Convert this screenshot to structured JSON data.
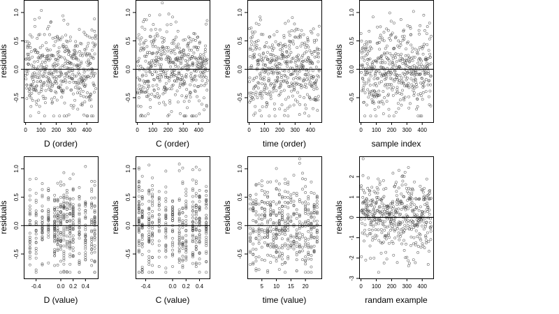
{
  "chart_data": [
    {
      "type": "scatter",
      "xlabel": "D (order)",
      "ylabel": "residuals",
      "xlim": [
        -12,
        472
      ],
      "ylim": [
        -0.93,
        1.22
      ],
      "xticks": [
        0,
        100,
        200,
        300,
        400
      ],
      "xtick_labels": [
        "0",
        "100",
        "200",
        "300",
        "400"
      ],
      "yticks": [
        -0.5,
        0.0,
        0.5,
        1.0
      ],
      "ytick_labels": [
        "-0.5",
        "0.0",
        "0.5",
        "1.0"
      ],
      "refline_y": 0,
      "points": {
        "n": 460,
        "x_mode": "index",
        "sd": 0.38,
        "seed": 11
      }
    },
    {
      "type": "scatter",
      "xlabel": "C (order)",
      "ylabel": "residuals",
      "xlim": [
        -12,
        472
      ],
      "ylim": [
        -0.93,
        1.22
      ],
      "xticks": [
        0,
        100,
        200,
        300,
        400
      ],
      "xtick_labels": [
        "0",
        "100",
        "200",
        "300",
        "400"
      ],
      "yticks": [
        -0.5,
        0.0,
        0.5,
        1.0
      ],
      "ytick_labels": [
        "-0.5",
        "0.0",
        "0.5",
        "1.0"
      ],
      "refline_y": 0,
      "points": {
        "n": 460,
        "x_mode": "index",
        "sd": 0.38,
        "seed": 23
      }
    },
    {
      "type": "scatter",
      "xlabel": "time (order)",
      "ylabel": "residuals",
      "xlim": [
        -12,
        472
      ],
      "ylim": [
        -0.93,
        1.22
      ],
      "xticks": [
        0,
        100,
        200,
        300,
        400
      ],
      "xtick_labels": [
        "0",
        "100",
        "200",
        "300",
        "400"
      ],
      "yticks": [
        -0.5,
        0.0,
        0.5,
        1.0
      ],
      "ytick_labels": [
        "-0.5",
        "0.0",
        "0.5",
        "1.0"
      ],
      "refline_y": 0,
      "points": {
        "n": 460,
        "x_mode": "index",
        "sd": 0.38,
        "seed": 37
      }
    },
    {
      "type": "scatter",
      "xlabel": "sample index",
      "ylabel": "residuals",
      "xlim": [
        -12,
        472
      ],
      "ylim": [
        -0.93,
        1.22
      ],
      "xticks": [
        0,
        100,
        200,
        300,
        400
      ],
      "xtick_labels": [
        "0",
        "100",
        "200",
        "300",
        "400"
      ],
      "yticks": [
        -0.5,
        0.0,
        0.5,
        1.0
      ],
      "ytick_labels": [
        "-0.5",
        "0.0",
        "0.5",
        "1.0"
      ],
      "refline_y": 0,
      "points": {
        "n": 460,
        "x_mode": "index",
        "sd": 0.38,
        "seed": 41
      }
    },
    {
      "type": "scatter",
      "xlabel": "D (value)",
      "ylabel": "residuals",
      "xlim": [
        -0.6,
        0.6
      ],
      "ylim": [
        -0.93,
        1.22
      ],
      "xticks": [
        -0.4,
        0.0,
        0.2,
        0.4
      ],
      "xtick_labels": [
        "-0.4",
        "0.0",
        "0.2",
        "0.4"
      ],
      "yticks": [
        -0.5,
        0.0,
        0.5,
        1.0
      ],
      "ytick_labels": [
        "-0.5",
        "0.0",
        "0.5",
        "1.0"
      ],
      "refline_y": 0,
      "points": {
        "n": 460,
        "x_mode": "levels",
        "x_levels": [
          -0.5,
          -0.4,
          -0.3,
          -0.2,
          -0.1,
          -0.05,
          0.0,
          0.05,
          0.1,
          0.15,
          0.2,
          0.3,
          0.4,
          0.5,
          0.55
        ],
        "sd": 0.38,
        "seed": 53
      }
    },
    {
      "type": "scatter",
      "xlabel": "C (value)",
      "ylabel": "residuals",
      "xlim": [
        -0.55,
        0.55
      ],
      "ylim": [
        -0.93,
        1.22
      ],
      "xticks": [
        -0.4,
        0.0,
        0.2,
        0.4
      ],
      "xtick_labels": [
        "-0.4",
        "0.0",
        "0.2",
        "0.4"
      ],
      "yticks": [
        -0.5,
        0.0,
        0.5,
        1.0
      ],
      "ytick_labels": [
        "-0.5",
        "0.0",
        "0.5",
        "1.0"
      ],
      "refline_y": 0,
      "points": {
        "n": 460,
        "x_mode": "levels",
        "x_levels": [
          -0.5,
          -0.45,
          -0.35,
          -0.3,
          -0.2,
          -0.1,
          0.0,
          0.1,
          0.15,
          0.2,
          0.3,
          0.35,
          0.4,
          0.5
        ],
        "sd": 0.38,
        "seed": 67
      }
    },
    {
      "type": "scatter",
      "xlabel": "time (value)",
      "ylabel": "residuals",
      "xlim": [
        0,
        25.5
      ],
      "ylim": [
        -0.93,
        1.22
      ],
      "xticks": [
        5,
        10,
        15,
        20
      ],
      "xtick_labels": [
        "5",
        "10",
        "15",
        "20"
      ],
      "yticks": [
        -0.5,
        0.0,
        0.5,
        1.0
      ],
      "ytick_labels": [
        "-0.5",
        "0.0",
        "0.5",
        "1.0"
      ],
      "refline_y": 0,
      "points": {
        "n": 460,
        "x_mode": "levels",
        "x_levels": [
          1,
          2,
          3,
          4,
          5,
          6,
          7,
          8,
          9,
          10,
          11,
          12,
          13,
          14,
          15,
          16,
          17,
          18,
          19,
          20,
          21,
          22,
          23,
          24
        ],
        "sd": 0.38,
        "seed": 79
      }
    },
    {
      "type": "scatter",
      "xlabel": "randam example",
      "ylabel": "residuals",
      "xlim": [
        -12,
        472
      ],
      "ylim": [
        -3.0,
        3.0
      ],
      "xticks": [
        0,
        100,
        200,
        300,
        400
      ],
      "xtick_labels": [
        "0",
        "100",
        "200",
        "300",
        "400"
      ],
      "yticks": [
        -3,
        -2,
        -1,
        0,
        1,
        2
      ],
      "ytick_labels": [
        "-3",
        "-2",
        "-1",
        "0",
        "1",
        "2"
      ],
      "refline_y": 0,
      "points": {
        "n": 460,
        "x_mode": "index",
        "sd": 1.0,
        "seed": 97
      }
    }
  ]
}
